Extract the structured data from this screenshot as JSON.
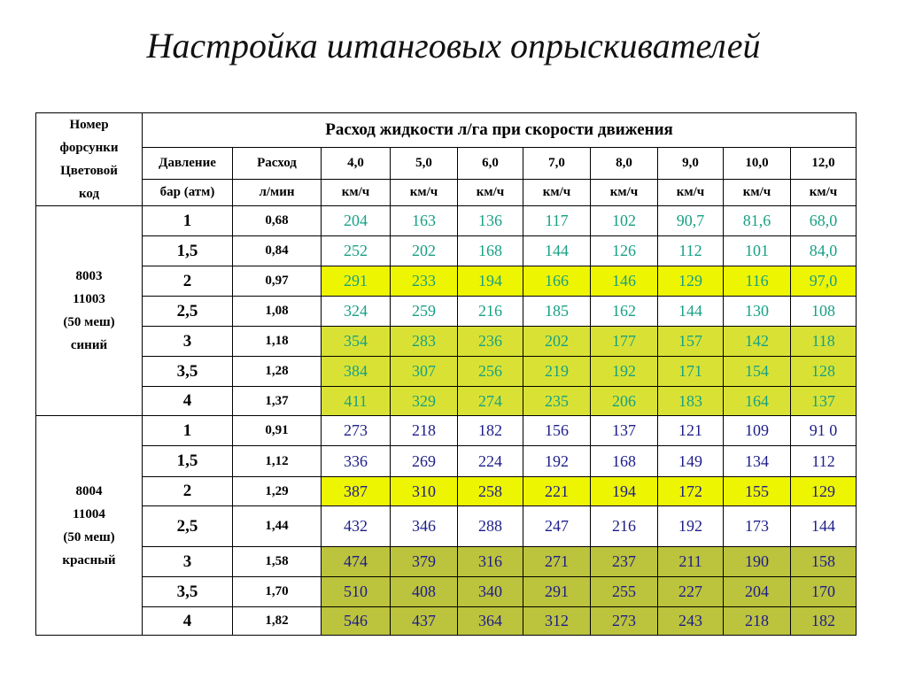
{
  "title": "Настройка штанговых опрыскивателей",
  "table": {
    "header": {
      "nozzle": [
        "Номер",
        "форсунки",
        "Цветовой",
        "код"
      ],
      "flow_title": "Расход жидкости л/га при скорости движения",
      "pressure": "Давление",
      "flow": "Расход",
      "pressure_unit": "бар (атм)",
      "flow_unit": "л/мин",
      "speeds": [
        "4,0",
        "5,0",
        "6,0",
        "7,0",
        "8,0",
        "9,0",
        "10,0",
        "12,0"
      ],
      "speed_units": [
        "км/ч",
        "км/ч",
        "км/ч",
        "км/ч",
        "км/ч",
        "км/ч",
        "км/ч",
        "км/ч"
      ]
    },
    "groups": [
      {
        "label": [
          "8003",
          "11003",
          "(50 меш)",
          "синий"
        ],
        "text_color": "#17a085",
        "rows": [
          {
            "pressure": "1",
            "flow": "0,68",
            "values": [
              "204",
              "163",
              "136",
              "117",
              "102",
              "90,7",
              "81,6",
              "68,0"
            ]
          },
          {
            "pressure": "1,5",
            "flow": "0,84",
            "values": [
              "252",
              "202",
              "168",
              "144",
              "126",
              "112",
              "101",
              "84,0"
            ]
          },
          {
            "pressure": "2",
            "flow": "0,97",
            "values": [
              "291",
              "233",
              "194",
              "166",
              "146",
              "129",
              "116",
              "97,0"
            ],
            "fill": "#eef500"
          },
          {
            "pressure": "2,5",
            "flow": "1,08",
            "values": [
              "324",
              "259",
              "216",
              "185",
              "162",
              "144",
              "130",
              "108"
            ]
          },
          {
            "pressure": "3",
            "flow": "1,18",
            "values": [
              "354",
              "283",
              "236",
              "202",
              "177",
              "157",
              "142",
              "118"
            ],
            "fill": "#d9e234"
          },
          {
            "pressure": "3,5",
            "flow": "1,28",
            "values": [
              "384",
              "307",
              "256",
              "219",
              "192",
              "171",
              "154",
              "128"
            ],
            "fill": "#d9e234"
          },
          {
            "pressure": "4",
            "flow": "1,37",
            "values": [
              "411",
              "329",
              "274",
              "235",
              "206",
              "183",
              "164",
              "137"
            ],
            "fill": "#d9e234"
          }
        ]
      },
      {
        "label": [
          "8004",
          "11004",
          "(50 меш)",
          "красный"
        ],
        "text_color": "#1c1c8a",
        "rows": [
          {
            "pressure": "1",
            "flow": "0,91",
            "values": [
              "273",
              "218",
              "182",
              "156",
              "137",
              "121",
              "109",
              "91 0"
            ]
          },
          {
            "pressure": "1,5",
            "flow": "1,12",
            "values": [
              "336",
              "269",
              "224",
              "192",
              "168",
              "149",
              "134",
              "112"
            ]
          },
          {
            "pressure": "2",
            "flow": "1,29",
            "values": [
              "387",
              "310",
              "258",
              "221",
              "194",
              "172",
              "155",
              "129"
            ],
            "fill": "#eef500"
          },
          {
            "pressure": "2,5",
            "flow": "1,44",
            "values": [
              "432",
              "346",
              "288",
              "247",
              "216",
              "192",
              "173",
              "144"
            ]
          },
          {
            "pressure": "3",
            "flow": "1,58",
            "values": [
              "474",
              "379",
              "316",
              "271",
              "237",
              "211",
              "190",
              "158"
            ],
            "fill": "#bcc33c"
          },
          {
            "pressure": "3,5",
            "flow": "1,70",
            "values": [
              "510",
              "408",
              "340",
              "291",
              "255",
              "227",
              "204",
              "170"
            ],
            "fill": "#bcc33c"
          },
          {
            "pressure": "4",
            "flow": "1,82",
            "values": [
              "546",
              "437",
              "364",
              "312",
              "273",
              "243",
              "218",
              "182"
            ],
            "fill": "#bcc33c"
          }
        ]
      }
    ]
  }
}
